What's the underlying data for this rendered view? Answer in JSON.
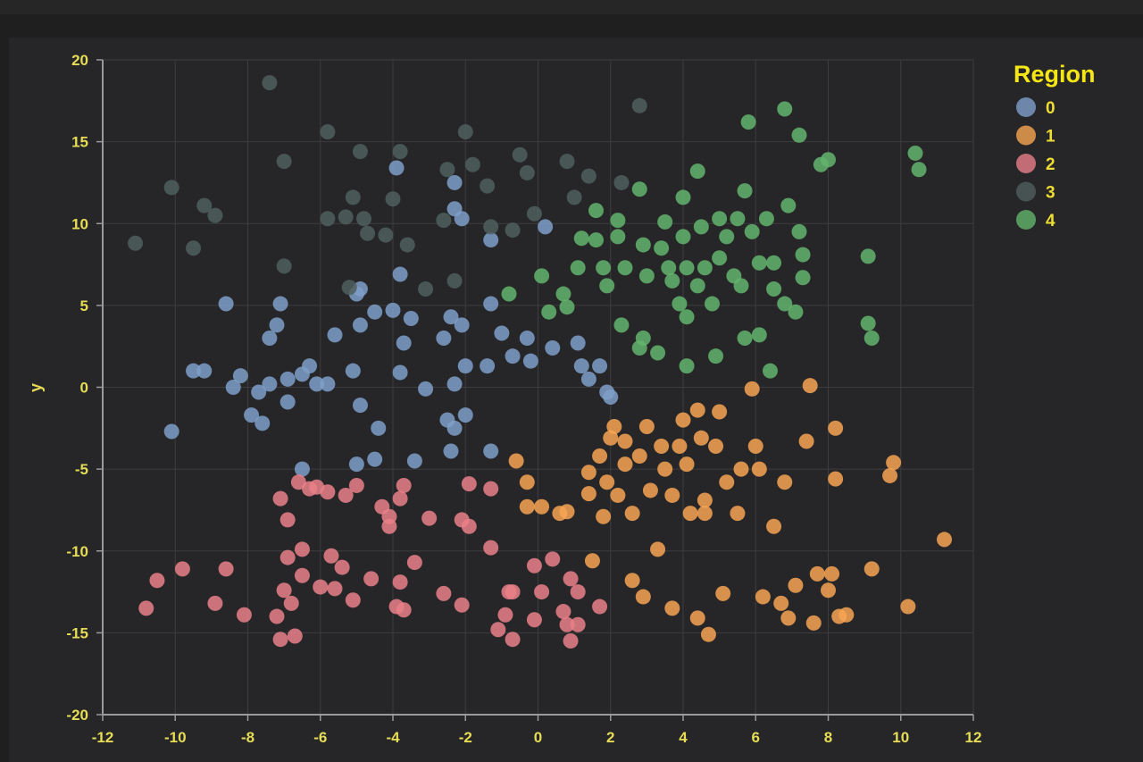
{
  "chart_data": {
    "type": "scatter",
    "title": "",
    "xlabel": "",
    "ylabel": "y",
    "xlim": [
      -12,
      12
    ],
    "ylim": [
      -20,
      20
    ],
    "xticks": [
      -12,
      -10,
      -8,
      -6,
      -4,
      -2,
      0,
      2,
      4,
      6,
      8,
      10,
      12
    ],
    "yticks": [
      -20,
      -15,
      -10,
      -5,
      0,
      5,
      10,
      15,
      20
    ],
    "grid": true,
    "legend": {
      "title": "Region",
      "placement": "right",
      "entries": [
        "0",
        "1",
        "2",
        "3",
        "4"
      ]
    },
    "colors": {
      "0": "#7f9fc9",
      "1": "#f7a553",
      "2": "#ea8088",
      "3": "#4f5f5d",
      "4": "#63b46c"
    },
    "series": [
      {
        "name": "0",
        "points": [
          [
            -10.1,
            -2.7
          ],
          [
            -9.5,
            1.0
          ],
          [
            -9.2,
            1.0
          ],
          [
            -8.6,
            5.1
          ],
          [
            -8.4,
            0.0
          ],
          [
            -8.2,
            0.7
          ],
          [
            -7.9,
            -1.7
          ],
          [
            -7.7,
            -0.3
          ],
          [
            -7.6,
            -2.2
          ],
          [
            -7.4,
            0.2
          ],
          [
            -7.4,
            3.0
          ],
          [
            -7.2,
            3.8
          ],
          [
            -7.1,
            5.1
          ],
          [
            -6.9,
            0.5
          ],
          [
            -6.9,
            -0.9
          ],
          [
            -6.5,
            0.8
          ],
          [
            -6.3,
            1.3
          ],
          [
            -6.1,
            0.2
          ],
          [
            -5.8,
            0.2
          ],
          [
            -5.6,
            3.2
          ],
          [
            -5.1,
            1.0
          ],
          [
            -4.9,
            3.8
          ],
          [
            -5.0,
            5.7
          ],
          [
            -4.9,
            -1.1
          ],
          [
            -4.5,
            4.6
          ],
          [
            -4.4,
            -2.5
          ],
          [
            -4.0,
            4.7
          ],
          [
            -3.7,
            2.7
          ],
          [
            -3.8,
            0.9
          ],
          [
            -3.5,
            4.2
          ],
          [
            -3.4,
            -4.5
          ],
          [
            -3.1,
            -0.1
          ],
          [
            -2.6,
            3.0
          ],
          [
            -2.4,
            4.3
          ],
          [
            -2.1,
            3.8
          ],
          [
            -2.3,
            0.2
          ],
          [
            -2.5,
            -2.0
          ],
          [
            -2.3,
            -2.5
          ],
          [
            -2.4,
            -3.9
          ],
          [
            -2.0,
            1.3
          ],
          [
            -2.0,
            -1.7
          ],
          [
            -1.4,
            1.3
          ],
          [
            -1.3,
            5.1
          ],
          [
            -1.3,
            -3.9
          ],
          [
            -1.0,
            3.3
          ],
          [
            -0.7,
            1.9
          ],
          [
            -0.3,
            3.0
          ],
          [
            -0.2,
            1.6
          ],
          [
            0.4,
            2.4
          ],
          [
            1.1,
            2.7
          ],
          [
            1.2,
            1.3
          ],
          [
            1.4,
            0.5
          ],
          [
            1.7,
            1.3
          ],
          [
            1.9,
            -0.3
          ],
          [
            2.0,
            -0.6
          ],
          [
            -6.5,
            -5.0
          ],
          [
            -5.0,
            -4.7
          ],
          [
            -4.5,
            -4.4
          ],
          [
            -2.3,
            12.5
          ],
          [
            -2.3,
            10.9
          ],
          [
            -2.1,
            10.3
          ],
          [
            0.2,
            9.8
          ],
          [
            -3.9,
            13.4
          ],
          [
            -3.8,
            6.9
          ],
          [
            -4.9,
            6.0
          ],
          [
            -1.3,
            9.0
          ]
        ]
      },
      {
        "name": "1",
        "points": [
          [
            -0.6,
            -4.5
          ],
          [
            -0.3,
            -5.8
          ],
          [
            -0.3,
            -7.3
          ],
          [
            0.1,
            -7.3
          ],
          [
            0.6,
            -7.7
          ],
          [
            0.8,
            -7.6
          ],
          [
            1.4,
            -5.2
          ],
          [
            1.5,
            -10.6
          ],
          [
            1.4,
            -6.5
          ],
          [
            1.7,
            -4.2
          ],
          [
            1.8,
            -7.9
          ],
          [
            2.0,
            -3.1
          ],
          [
            2.1,
            -2.4
          ],
          [
            2.2,
            -6.6
          ],
          [
            2.4,
            -3.3
          ],
          [
            2.6,
            -11.8
          ],
          [
            2.6,
            -7.7
          ],
          [
            2.8,
            -4.2
          ],
          [
            2.9,
            -12.8
          ],
          [
            3.0,
            -2.4
          ],
          [
            3.1,
            -6.3
          ],
          [
            3.3,
            -9.9
          ],
          [
            3.4,
            -3.6
          ],
          [
            3.5,
            -5.0
          ],
          [
            3.7,
            -13.5
          ],
          [
            3.9,
            -3.6
          ],
          [
            4.0,
            -2.0
          ],
          [
            4.1,
            -4.7
          ],
          [
            4.2,
            -7.7
          ],
          [
            4.4,
            -1.4
          ],
          [
            4.4,
            -14.1
          ],
          [
            4.5,
            -3.1
          ],
          [
            4.6,
            -7.7
          ],
          [
            4.7,
            -15.1
          ],
          [
            4.9,
            -3.6
          ],
          [
            5.0,
            -1.5
          ],
          [
            5.1,
            -12.6
          ],
          [
            5.2,
            -5.8
          ],
          [
            5.5,
            -7.7
          ],
          [
            5.6,
            -5.0
          ],
          [
            5.9,
            -0.1
          ],
          [
            6.0,
            -3.6
          ],
          [
            6.1,
            -5.0
          ],
          [
            6.2,
            -12.8
          ],
          [
            6.5,
            -8.5
          ],
          [
            6.7,
            -13.2
          ],
          [
            6.8,
            -5.8
          ],
          [
            6.9,
            -14.1
          ],
          [
            7.1,
            -12.1
          ],
          [
            7.4,
            -3.3
          ],
          [
            7.5,
            0.1
          ],
          [
            7.6,
            -14.4
          ],
          [
            7.7,
            -11.4
          ],
          [
            8.0,
            -12.4
          ],
          [
            8.1,
            -11.4
          ],
          [
            8.2,
            -5.6
          ],
          [
            8.2,
            -2.5
          ],
          [
            8.3,
            -14.0
          ],
          [
            8.5,
            -13.9
          ],
          [
            9.2,
            -11.1
          ],
          [
            9.7,
            -5.4
          ],
          [
            9.8,
            -4.6
          ],
          [
            10.2,
            -13.4
          ],
          [
            11.2,
            -9.3
          ],
          [
            1.9,
            -5.8
          ],
          [
            2.4,
            -4.7
          ],
          [
            3.7,
            -6.6
          ],
          [
            4.6,
            -6.9
          ]
        ]
      },
      {
        "name": "2",
        "points": [
          [
            -10.8,
            -13.5
          ],
          [
            -10.5,
            -11.8
          ],
          [
            -9.8,
            -11.1
          ],
          [
            -8.9,
            -13.2
          ],
          [
            -8.6,
            -11.1
          ],
          [
            -8.1,
            -13.9
          ],
          [
            -7.2,
            -14.0
          ],
          [
            -7.1,
            -6.8
          ],
          [
            -7.1,
            -15.4
          ],
          [
            -7.0,
            -12.4
          ],
          [
            -6.9,
            -8.1
          ],
          [
            -6.9,
            -10.4
          ],
          [
            -6.8,
            -13.2
          ],
          [
            -6.7,
            -15.2
          ],
          [
            -6.6,
            -5.8
          ],
          [
            -6.5,
            -9.9
          ],
          [
            -6.5,
            -11.5
          ],
          [
            -6.3,
            -6.2
          ],
          [
            -6.1,
            -6.1
          ],
          [
            -6.0,
            -12.2
          ],
          [
            -5.8,
            -6.4
          ],
          [
            -5.7,
            -10.3
          ],
          [
            -5.6,
            -12.3
          ],
          [
            -5.4,
            -11.0
          ],
          [
            -5.3,
            -6.6
          ],
          [
            -5.1,
            -13.0
          ],
          [
            -5.0,
            -6.0
          ],
          [
            -4.6,
            -11.7
          ],
          [
            -4.3,
            -7.3
          ],
          [
            -4.1,
            -7.9
          ],
          [
            -4.1,
            -8.5
          ],
          [
            -3.9,
            -13.4
          ],
          [
            -3.8,
            -6.8
          ],
          [
            -3.7,
            -6.0
          ],
          [
            -3.8,
            -11.9
          ],
          [
            -3.7,
            -13.6
          ],
          [
            -3.4,
            -10.7
          ],
          [
            -3.0,
            -8.0
          ],
          [
            -2.6,
            -12.6
          ],
          [
            -2.1,
            -8.1
          ],
          [
            -2.1,
            -13.3
          ],
          [
            -1.9,
            -8.5
          ],
          [
            -1.9,
            -5.9
          ],
          [
            -1.3,
            -9.8
          ],
          [
            -1.3,
            -6.2
          ],
          [
            -1.1,
            -14.8
          ],
          [
            -0.9,
            -13.9
          ],
          [
            -0.8,
            -12.5
          ],
          [
            -0.7,
            -15.4
          ],
          [
            -0.7,
            -12.5
          ],
          [
            -0.1,
            -14.2
          ],
          [
            -0.1,
            -10.9
          ],
          [
            0.1,
            -12.5
          ],
          [
            0.4,
            -10.5
          ],
          [
            0.7,
            -13.7
          ],
          [
            0.8,
            -14.5
          ],
          [
            0.9,
            -15.5
          ],
          [
            0.9,
            -11.7
          ],
          [
            1.1,
            -14.5
          ],
          [
            1.1,
            -12.5
          ],
          [
            1.7,
            -13.4
          ]
        ]
      },
      {
        "name": "3",
        "points": [
          [
            -11.1,
            8.8
          ],
          [
            -10.1,
            12.2
          ],
          [
            -9.5,
            8.5
          ],
          [
            -9.2,
            11.1
          ],
          [
            -8.9,
            10.5
          ],
          [
            -7.4,
            18.6
          ],
          [
            -7.0,
            13.8
          ],
          [
            -7.0,
            7.4
          ],
          [
            -5.8,
            15.6
          ],
          [
            -5.8,
            10.3
          ],
          [
            -5.3,
            10.4
          ],
          [
            -5.1,
            11.6
          ],
          [
            -4.8,
            10.3
          ],
          [
            -4.9,
            14.4
          ],
          [
            -4.7,
            9.4
          ],
          [
            -4.2,
            9.3
          ],
          [
            -4.0,
            11.5
          ],
          [
            -3.8,
            14.4
          ],
          [
            -3.6,
            8.7
          ],
          [
            -3.1,
            6.0
          ],
          [
            -2.6,
            10.2
          ],
          [
            -2.5,
            13.3
          ],
          [
            -2.0,
            15.6
          ],
          [
            -1.8,
            13.6
          ],
          [
            -1.4,
            12.3
          ],
          [
            -1.3,
            9.8
          ],
          [
            -0.7,
            9.6
          ],
          [
            -0.5,
            14.2
          ],
          [
            -0.3,
            13.1
          ],
          [
            -0.1,
            10.6
          ],
          [
            0.8,
            13.8
          ],
          [
            1.0,
            11.6
          ],
          [
            1.4,
            12.9
          ],
          [
            2.3,
            12.5
          ],
          [
            2.8,
            17.2
          ],
          [
            -2.3,
            6.5
          ],
          [
            -5.2,
            6.1
          ]
        ]
      },
      {
        "name": "4",
        "points": [
          [
            -0.8,
            5.7
          ],
          [
            0.1,
            6.8
          ],
          [
            0.3,
            4.6
          ],
          [
            0.8,
            4.9
          ],
          [
            1.1,
            7.3
          ],
          [
            1.2,
            9.1
          ],
          [
            1.6,
            9.0
          ],
          [
            1.6,
            10.8
          ],
          [
            1.9,
            6.2
          ],
          [
            2.2,
            10.2
          ],
          [
            2.2,
            9.2
          ],
          [
            2.3,
            3.8
          ],
          [
            2.8,
            12.1
          ],
          [
            2.8,
            2.4
          ],
          [
            2.9,
            8.7
          ],
          [
            3.0,
            6.8
          ],
          [
            3.3,
            2.1
          ],
          [
            3.4,
            8.5
          ],
          [
            3.5,
            10.1
          ],
          [
            3.6,
            7.3
          ],
          [
            3.7,
            6.5
          ],
          [
            3.9,
            5.1
          ],
          [
            4.0,
            11.6
          ],
          [
            4.0,
            9.2
          ],
          [
            4.1,
            7.3
          ],
          [
            4.1,
            4.3
          ],
          [
            4.1,
            1.3
          ],
          [
            4.4,
            13.2
          ],
          [
            4.5,
            9.8
          ],
          [
            4.6,
            7.3
          ],
          [
            4.8,
            5.1
          ],
          [
            4.9,
            1.9
          ],
          [
            5.0,
            7.9
          ],
          [
            5.2,
            9.2
          ],
          [
            5.4,
            6.8
          ],
          [
            5.5,
            10.3
          ],
          [
            5.6,
            6.2
          ],
          [
            5.7,
            3.0
          ],
          [
            5.8,
            16.2
          ],
          [
            5.7,
            12.0
          ],
          [
            5.9,
            9.5
          ],
          [
            6.1,
            7.6
          ],
          [
            6.1,
            3.2
          ],
          [
            6.3,
            10.3
          ],
          [
            6.4,
            1.0
          ],
          [
            6.5,
            7.6
          ],
          [
            6.5,
            6.0
          ],
          [
            6.8,
            17.0
          ],
          [
            6.8,
            5.1
          ],
          [
            6.9,
            11.1
          ],
          [
            7.1,
            4.6
          ],
          [
            7.2,
            15.4
          ],
          [
            7.2,
            9.5
          ],
          [
            7.3,
            8.1
          ],
          [
            7.3,
            6.7
          ],
          [
            7.8,
            13.6
          ],
          [
            8.0,
            13.9
          ],
          [
            9.1,
            8.0
          ],
          [
            9.1,
            3.9
          ],
          [
            9.2,
            3.0
          ],
          [
            10.4,
            14.3
          ],
          [
            10.5,
            13.3
          ],
          [
            0.7,
            5.7
          ],
          [
            2.4,
            7.3
          ],
          [
            1.8,
            7.3
          ],
          [
            2.9,
            3.0
          ],
          [
            4.4,
            6.2
          ],
          [
            5.0,
            10.3
          ]
        ]
      }
    ]
  }
}
